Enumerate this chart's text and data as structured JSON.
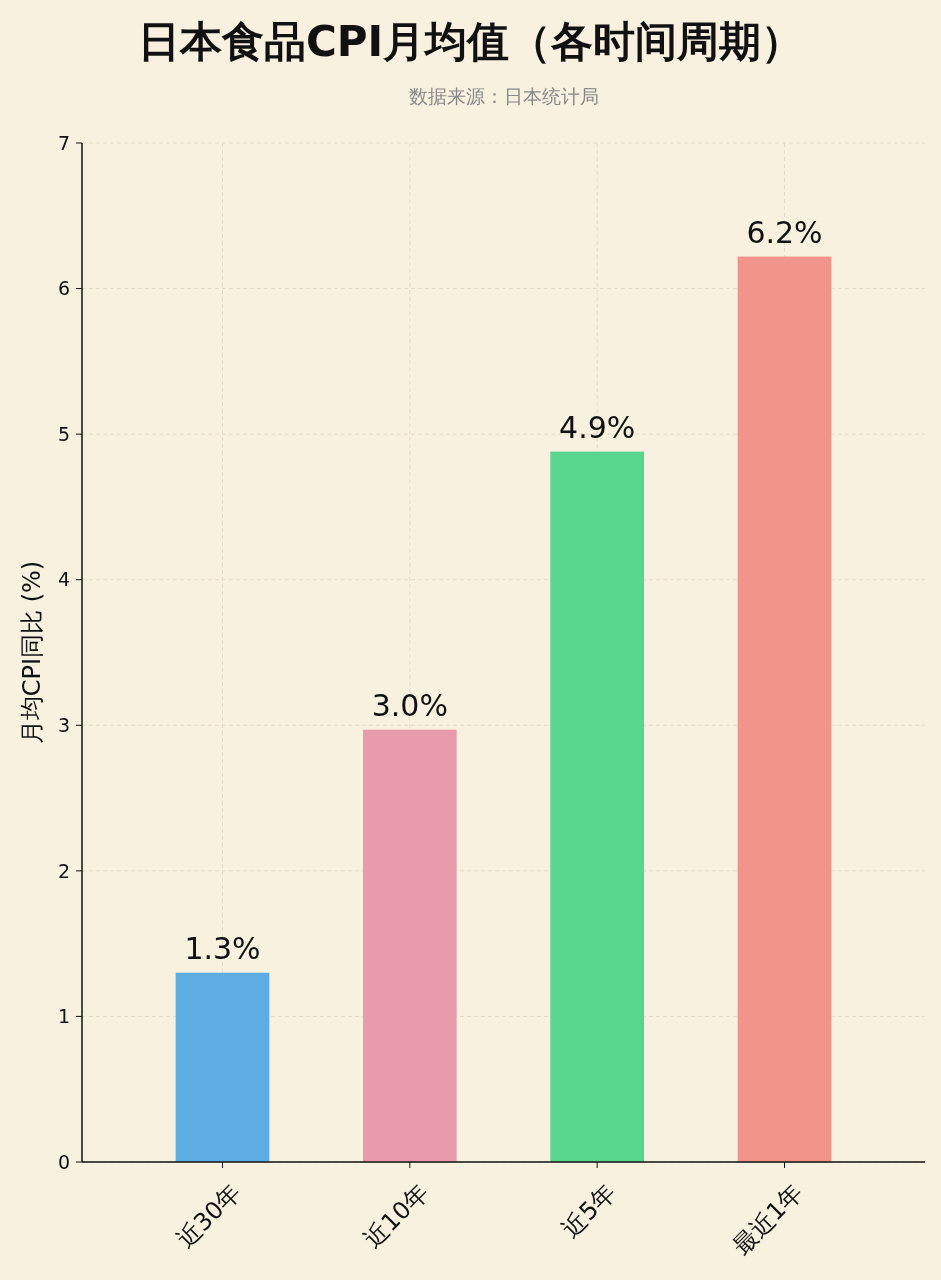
{
  "chart_data": {
    "type": "bar",
    "title": "日本食品CPI月均值（各时间周期）",
    "subtitle": "数据来源：日本统计局",
    "ylabel": "月均CPI同比 (%)",
    "categories": [
      "近30年",
      "近10年",
      "近5年",
      "最近1年"
    ],
    "values": [
      1.3,
      2.97,
      4.88,
      6.22
    ],
    "value_labels": [
      "1.3%",
      "3.0%",
      "4.9%",
      "6.2%"
    ],
    "colors": [
      "#5dade2",
      "#e89bab",
      "#58d68d",
      "#f1948a"
    ],
    "ylim": [
      0,
      7
    ],
    "yticks": [
      0,
      1,
      2,
      3,
      4,
      5,
      6,
      7
    ],
    "grid": true
  }
}
